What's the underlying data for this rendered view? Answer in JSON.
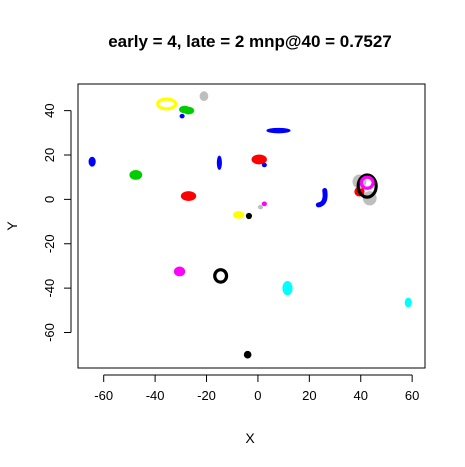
{
  "chart_data": {
    "type": "scatter",
    "title": "early = 4, late = 2 mnp@40 = 0.7527",
    "xlabel": "X",
    "ylabel": "Y",
    "xlim": [
      -70,
      65
    ],
    "ylim": [
      -76,
      52
    ],
    "xticks": [
      -60,
      -40,
      -20,
      0,
      20,
      40,
      60
    ],
    "yticks": [
      -60,
      -40,
      -20,
      0,
      20,
      40
    ],
    "grid": false,
    "legend": "none",
    "clusters": [
      {
        "color": "#ffff00",
        "shape": "ring",
        "x": [
          -35.5
        ],
        "y": [
          43
        ],
        "rx": 3.5,
        "ry": 2.2
      },
      {
        "color": "#bebebe",
        "shape": "blob",
        "x": [
          -21
        ],
        "y": [
          46.5
        ],
        "rx": 1.5,
        "ry": 2
      },
      {
        "color": "#00cd00",
        "shape": "blob",
        "x": [
          -28.5,
          -27
        ],
        "y": [
          40.5,
          40
        ],
        "rx": 2,
        "ry": 1.5
      },
      {
        "color": "#0000ff",
        "shape": "blob",
        "x": [
          -29.5
        ],
        "y": [
          37.5
        ],
        "rx": 0.8,
        "ry": 0.8
      },
      {
        "color": "#0000ff",
        "shape": "blob",
        "x": [
          -64.5
        ],
        "y": [
          17
        ],
        "rx": 1.2,
        "ry": 2
      },
      {
        "color": "#00cd00",
        "shape": "blob",
        "x": [
          -47.5
        ],
        "y": [
          11
        ],
        "rx": 2.3,
        "ry": 2
      },
      {
        "color": "#0000ff",
        "shape": "blob",
        "x": [
          -15
        ],
        "y": [
          16.5
        ],
        "rx": 0.8,
        "ry": 3
      },
      {
        "color": "#ff0000",
        "shape": "blob",
        "x": [
          -27
        ],
        "y": [
          1.5
        ],
        "rx": 2.8,
        "ry": 2
      },
      {
        "color": "#0000ff",
        "shape": "blob",
        "x": [
          8
        ],
        "y": [
          31
        ],
        "rx": 4.5,
        "ry": 1
      },
      {
        "color": "#ff0000",
        "shape": "blob",
        "x": [
          0.5
        ],
        "y": [
          18
        ],
        "rx": 2.8,
        "ry": 2
      },
      {
        "color": "#0000ff",
        "shape": "blob",
        "x": [
          2.5
        ],
        "y": [
          15.5
        ],
        "rx": 0.8,
        "ry": 0.8
      },
      {
        "color": "#0000ff",
        "shape": "arc",
        "x": [
          23.5,
          26
        ],
        "y": [
          -2.5,
          4
        ],
        "rx": 1,
        "ry": 3
      },
      {
        "color": "#ff0000",
        "shape": "blob",
        "x": [
          39.5
        ],
        "y": [
          3.5
        ],
        "rx": 1.8,
        "ry": 2
      },
      {
        "color": "#bebebe",
        "shape": "blob",
        "x": [
          39.5,
          43.5
        ],
        "y": [
          8,
          0.5
        ],
        "rx": 2.5,
        "ry": 3
      },
      {
        "color": "#000000",
        "shape": "arc",
        "x": [
          42.5
        ],
        "y": [
          6
        ],
        "rx": 3.5,
        "ry": 5
      },
      {
        "color": "#ff00ff",
        "shape": "ring",
        "x": [
          42.5
        ],
        "y": [
          7.5
        ],
        "rx": 2.3,
        "ry": 2.5
      },
      {
        "color": "#ffff00",
        "shape": "blob",
        "x": [
          -7.5
        ],
        "y": [
          -7
        ],
        "rx": 2,
        "ry": 1.5
      },
      {
        "color": "#000000",
        "shape": "blob",
        "x": [
          -3.5
        ],
        "y": [
          -7.5
        ],
        "rx": 1,
        "ry": 1.2
      },
      {
        "color": "#bebebe",
        "shape": "blob",
        "x": [
          1
        ],
        "y": [
          -3.5
        ],
        "rx": 0.8,
        "ry": 0.8
      },
      {
        "color": "#ff00ff",
        "shape": "blob",
        "x": [
          2.5
        ],
        "y": [
          -2
        ],
        "rx": 0.8,
        "ry": 0.8
      },
      {
        "color": "#ff00ff",
        "shape": "blob",
        "x": [
          -30.5
        ],
        "y": [
          -32.5
        ],
        "rx": 2,
        "ry": 2
      },
      {
        "color": "#000000",
        "shape": "ring",
        "x": [
          -14.5
        ],
        "y": [
          -34.5
        ],
        "rx": 2.3,
        "ry": 2.8
      },
      {
        "color": "#00ffff",
        "shape": "blob",
        "x": [
          11.5
        ],
        "y": [
          -40
        ],
        "rx": 1.8,
        "ry": 3
      },
      {
        "color": "#00ffff",
        "shape": "blob",
        "x": [
          58.5
        ],
        "y": [
          -46.5
        ],
        "rx": 1.2,
        "ry": 2
      },
      {
        "color": "#000000",
        "shape": "blob",
        "x": [
          -4
        ],
        "y": [
          -70
        ],
        "rx": 1.3,
        "ry": 1.5
      }
    ]
  }
}
